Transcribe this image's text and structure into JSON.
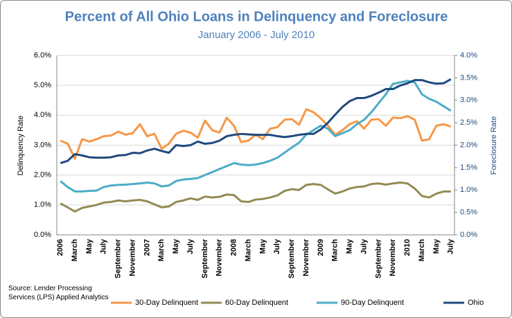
{
  "chart_data": {
    "type": "line",
    "title": "Percent of All Ohio Loans in Delinquency and Foreclosure",
    "subtitle": "January 2006 - July 2010",
    "y_label": "Delinquency Rate",
    "y2_label": "Foreclosure Rate",
    "annotation": "Source: Lender Processing Services (LPS) Applied Analytics",
    "categories": [
      "2006",
      null,
      "March",
      null,
      "May",
      null,
      "July",
      null,
      "September",
      null,
      "November",
      null,
      "2007",
      null,
      "March",
      null,
      "May",
      null,
      "July",
      null,
      "September",
      null,
      "November",
      null,
      "2008",
      null,
      "March",
      null,
      "May",
      null,
      "July",
      null,
      "September",
      null,
      "November",
      null,
      "2009",
      null,
      "March",
      null,
      "May",
      null,
      "July",
      null,
      "September",
      null,
      "November",
      null,
      "2010",
      null,
      "March",
      null,
      "May",
      null,
      "July"
    ],
    "series": [
      {
        "name": "30-Day Delinquent",
        "color": "#f79646",
        "axis": "y",
        "values": [
          3.15,
          3.05,
          2.55,
          3.2,
          3.12,
          3.2,
          3.3,
          3.32,
          3.45,
          3.35,
          3.4,
          3.7,
          3.3,
          3.38,
          2.88,
          3.05,
          3.38,
          3.48,
          3.42,
          3.25,
          3.82,
          3.5,
          3.42,
          3.92,
          3.65,
          3.1,
          3.15,
          3.35,
          3.2,
          3.55,
          3.6,
          3.85,
          3.87,
          3.68,
          4.2,
          4.1,
          3.9,
          3.65,
          3.35,
          3.5,
          3.7,
          3.8,
          3.55,
          3.85,
          3.87,
          3.65,
          3.92,
          3.9,
          3.97,
          3.85,
          3.15,
          3.2,
          3.65,
          3.7,
          3.62
        ]
      },
      {
        "name": "60-Day Delinquent",
        "color": "#948a54",
        "axis": "y",
        "values": [
          1.05,
          0.92,
          0.78,
          0.9,
          0.95,
          1.0,
          1.08,
          1.1,
          1.15,
          1.12,
          1.15,
          1.17,
          1.12,
          1.02,
          0.92,
          0.95,
          1.1,
          1.15,
          1.22,
          1.17,
          1.28,
          1.25,
          1.27,
          1.35,
          1.33,
          1.12,
          1.1,
          1.18,
          1.2,
          1.25,
          1.32,
          1.47,
          1.53,
          1.5,
          1.67,
          1.7,
          1.67,
          1.52,
          1.38,
          1.45,
          1.55,
          1.6,
          1.62,
          1.7,
          1.72,
          1.68,
          1.72,
          1.75,
          1.72,
          1.55,
          1.3,
          1.25,
          1.38,
          1.45,
          1.45
        ]
      },
      {
        "name": "90-Day Delinquent",
        "color": "#4bacc6",
        "axis": "y",
        "values": [
          1.8,
          1.6,
          1.45,
          1.45,
          1.47,
          1.48,
          1.6,
          1.65,
          1.67,
          1.68,
          1.7,
          1.72,
          1.75,
          1.72,
          1.62,
          1.65,
          1.8,
          1.85,
          1.87,
          1.9,
          2.0,
          2.1,
          2.2,
          2.3,
          2.4,
          2.35,
          2.33,
          2.35,
          2.4,
          2.48,
          2.58,
          2.75,
          2.92,
          3.08,
          3.35,
          3.5,
          3.65,
          3.55,
          3.3,
          3.4,
          3.5,
          3.7,
          3.85,
          4.1,
          4.4,
          4.7,
          5.05,
          5.1,
          5.15,
          5.1,
          4.7,
          4.55,
          4.45,
          4.3,
          4.15
        ]
      },
      {
        "name": "Ohio",
        "color": "#1f497d",
        "axis": "y2",
        "values": [
          1.6,
          1.65,
          1.8,
          1.77,
          1.73,
          1.72,
          1.72,
          1.73,
          1.77,
          1.78,
          1.83,
          1.82,
          1.88,
          1.92,
          1.87,
          1.83,
          2.0,
          1.98,
          2.0,
          2.08,
          2.03,
          2.05,
          2.1,
          2.2,
          2.23,
          2.25,
          2.24,
          2.23,
          2.23,
          2.23,
          2.2,
          2.18,
          2.2,
          2.23,
          2.25,
          2.25,
          2.35,
          2.5,
          2.68,
          2.85,
          2.98,
          3.05,
          3.05,
          3.1,
          3.17,
          3.25,
          3.25,
          3.33,
          3.38,
          3.45,
          3.45,
          3.4,
          3.37,
          3.38,
          3.47
        ]
      }
    ],
    "ylim": [
      0,
      6
    ],
    "yticks": [
      {
        "value": 0,
        "label": "0.0%"
      },
      {
        "value": 1,
        "label": "1.0%"
      },
      {
        "value": 2,
        "label": "2.0%"
      },
      {
        "value": 3,
        "label": "3.0%"
      },
      {
        "value": 4,
        "label": "4.0%"
      },
      {
        "value": 5,
        "label": "5.0%"
      },
      {
        "value": 6,
        "label": "6.0%"
      }
    ],
    "y2lim": [
      0,
      4
    ],
    "y2ticks": [
      {
        "value": 0,
        "label": "0.0%"
      },
      {
        "value": 0.5,
        "label": "0.5%"
      },
      {
        "value": 1,
        "label": "1.0%"
      },
      {
        "value": 1.5,
        "label": "1.5%"
      },
      {
        "value": 2,
        "label": "2.0%"
      },
      {
        "value": 2.5,
        "label": "2.5%"
      },
      {
        "value": 3,
        "label": "3.0%"
      },
      {
        "value": 3.5,
        "label": "3.5%"
      },
      {
        "value": 4,
        "label": "4.0%"
      }
    ],
    "grid": true,
    "legend": "bottom"
  }
}
